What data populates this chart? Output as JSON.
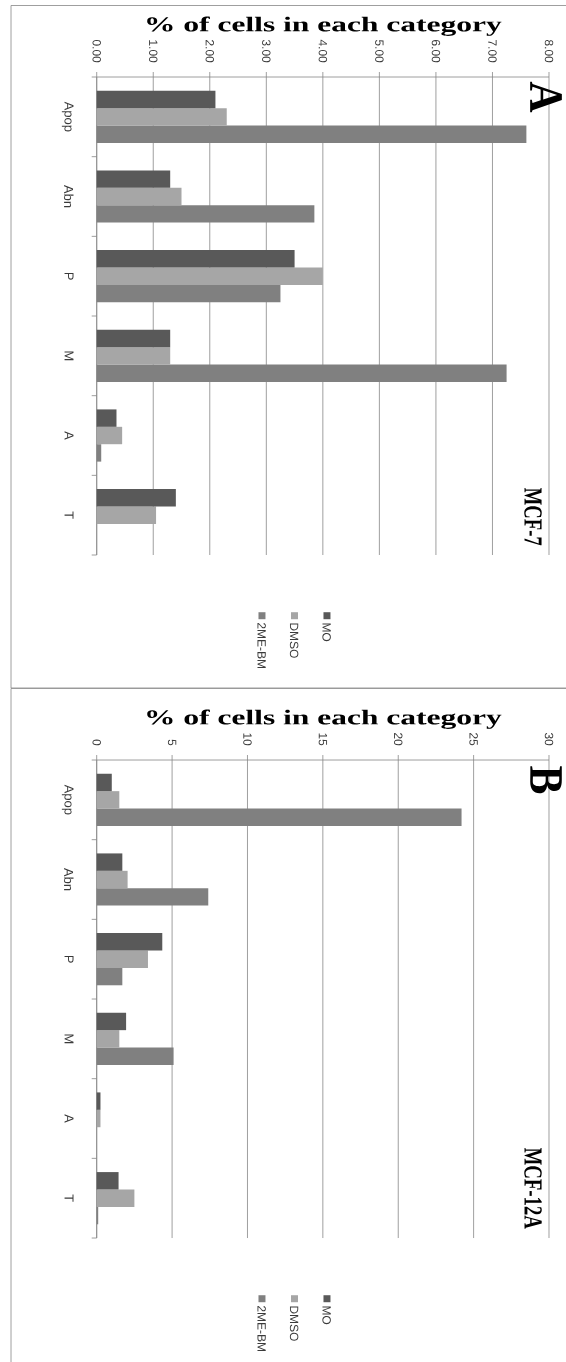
{
  "chart_data": [
    {
      "type": "bar",
      "orientation": "horizontal",
      "title": "MCF-7",
      "annotations": [
        "A"
      ],
      "xlabel": "% of cells in each category",
      "categories": [
        "Apop",
        "Abn",
        "P",
        "M",
        "A",
        "T"
      ],
      "series": [
        {
          "name": "MO",
          "color": "#595959",
          "values": [
            2.1,
            1.3,
            3.5,
            1.3,
            0.35,
            1.4
          ]
        },
        {
          "name": "DMSO",
          "color": "#a6a6a6",
          "values": [
            2.3,
            1.5,
            4.0,
            1.3,
            0.45,
            1.05
          ]
        },
        {
          "name": "2ME-BM",
          "color": "#808080",
          "values": [
            7.6,
            3.85,
            3.25,
            7.25,
            0.08,
            null
          ]
        }
      ],
      "xlim": [
        0,
        8
      ],
      "xticks": [
        {
          "value": 0,
          "label": "0.00"
        },
        {
          "value": 1,
          "label": "1.00"
        },
        {
          "value": 2,
          "label": "2.00"
        },
        {
          "value": 3,
          "label": "3.00"
        },
        {
          "value": 4,
          "label": "4.00"
        },
        {
          "value": 5,
          "label": "5.00"
        },
        {
          "value": 6,
          "label": "6.00"
        },
        {
          "value": 7,
          "label": "7.00"
        },
        {
          "value": 8,
          "label": "8.00"
        }
      ],
      "grid": "x",
      "legend": "bottom"
    },
    {
      "type": "bar",
      "orientation": "horizontal",
      "title": "MCF-12A",
      "annotations": [
        "B"
      ],
      "xlabel": "% of cells in each category",
      "categories": [
        "Apop",
        "Abn",
        "P",
        "M",
        "A",
        "T"
      ],
      "series": [
        {
          "name": "MO",
          "color": "#595959",
          "values": [
            1.0,
            1.7,
            4.35,
            1.95,
            0.25,
            1.45
          ]
        },
        {
          "name": "DMSO",
          "color": "#a6a6a6",
          "values": [
            1.5,
            2.05,
            3.4,
            1.5,
            0.25,
            2.5
          ]
        },
        {
          "name": "2ME-BM",
          "color": "#808080",
          "values": [
            24.2,
            7.4,
            1.7,
            5.1,
            null,
            0.1
          ]
        }
      ],
      "xlim": [
        0,
        30
      ],
      "xticks": [
        0,
        5,
        10,
        15,
        20,
        25,
        30
      ],
      "grid": "x",
      "legend": "bottom"
    }
  ]
}
